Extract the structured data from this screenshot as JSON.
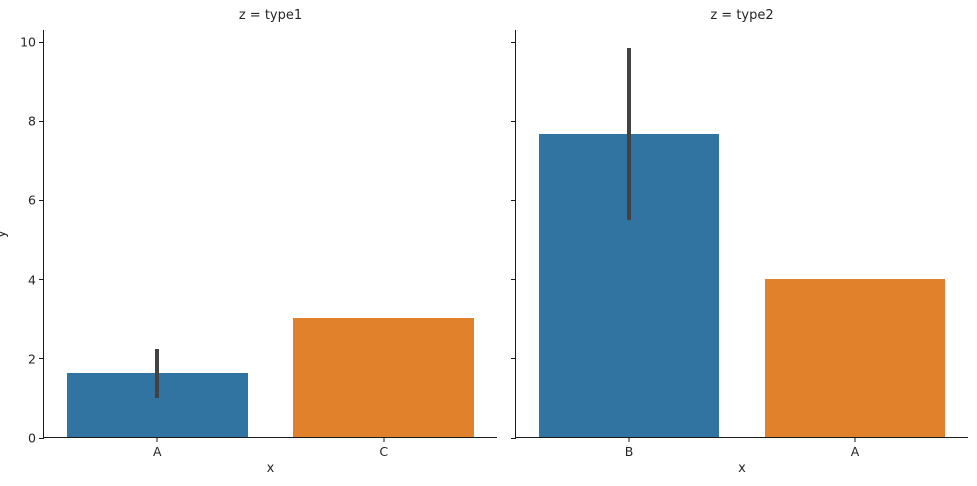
{
  "figure": {
    "kind": "seaborn-faceted-bar-chart",
    "background_color": "#ffffff",
    "text_color": "#262626",
    "axis_color": "#1a1a1a"
  },
  "chart_data": {
    "type": "bar",
    "facet_variable": "z",
    "xlabel": "x",
    "ylabel": "y",
    "ylim": [
      0,
      10.3
    ],
    "yticks": [
      "0",
      "2",
      "4",
      "6",
      "8",
      "10"
    ],
    "grid": false,
    "legend_position": "none",
    "palette": {
      "blue": "#3274a1",
      "orange": "#e1812c",
      "error_bar": "#424242"
    },
    "facets": [
      {
        "title": "z = type1",
        "xlabel": "x",
        "categories": [
          "A",
          "C"
        ],
        "bars": [
          {
            "label": "A",
            "value": 1.62,
            "color": "#3274a1",
            "error_low": 1.0,
            "error_high": 2.25
          },
          {
            "label": "C",
            "value": 3.0,
            "color": "#e1812c",
            "error_low": null,
            "error_high": null
          }
        ]
      },
      {
        "title": "z = type2",
        "xlabel": "x",
        "categories": [
          "B",
          "A"
        ],
        "bars": [
          {
            "label": "B",
            "value": 7.65,
            "color": "#3274a1",
            "error_low": 5.5,
            "error_high": 9.85
          },
          {
            "label": "A",
            "value": 4.0,
            "color": "#e1812c",
            "error_low": null,
            "error_high": null
          }
        ]
      }
    ]
  }
}
